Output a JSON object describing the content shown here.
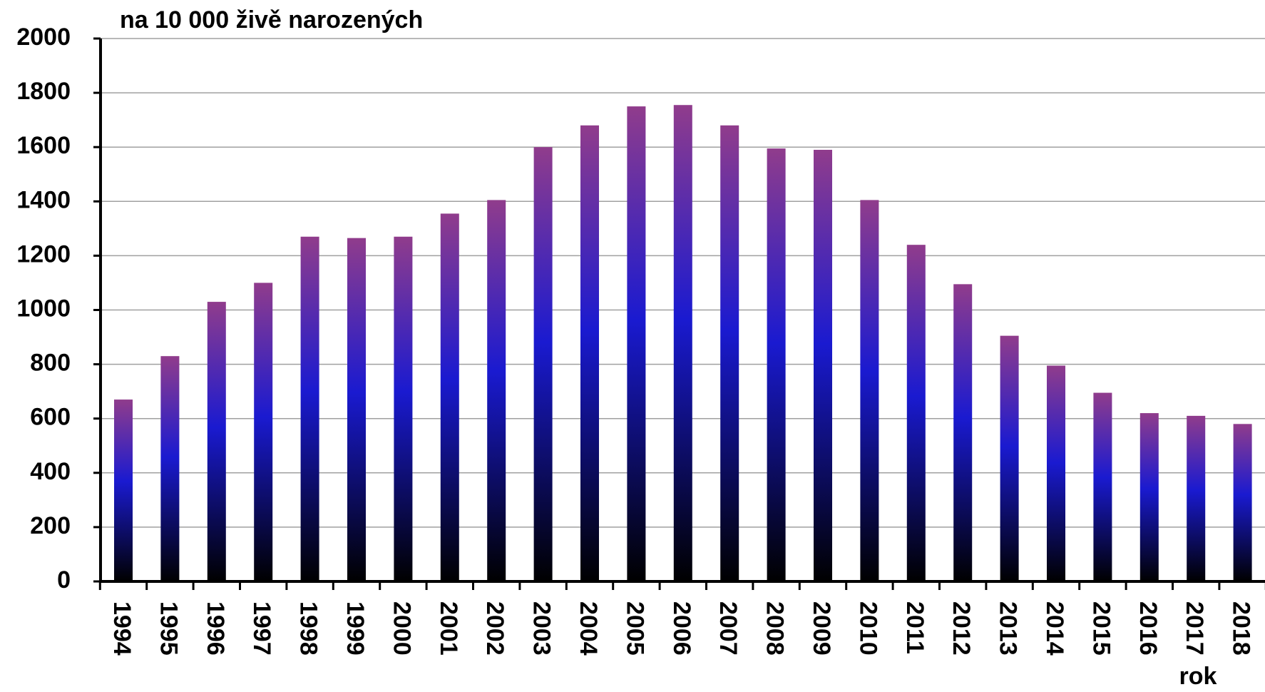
{
  "chart_data": {
    "type": "bar",
    "title": "na 10 000 živě narozených",
    "x_label": "rok",
    "categories": [
      "1994",
      "1995",
      "1996",
      "1997",
      "1998",
      "1999",
      "2000",
      "2001",
      "2002",
      "2003",
      "2004",
      "2005",
      "2006",
      "2007",
      "2008",
      "2009",
      "2010",
      "2011",
      "2012",
      "2013",
      "2014",
      "2015",
      "2016",
      "2017",
      "2018"
    ],
    "values": [
      670,
      830,
      1030,
      1100,
      1270,
      1265,
      1270,
      1355,
      1405,
      1600,
      1680,
      1750,
      1755,
      1680,
      1595,
      1590,
      1405,
      1240,
      1095,
      905,
      795,
      695,
      620,
      610,
      580
    ],
    "gradient": [
      "#903c8c",
      "#1a1ad0",
      "#000000"
    ],
    "ylim": [
      0,
      2000
    ],
    "yticks": [
      0,
      200,
      400,
      600,
      800,
      1000,
      1200,
      1400,
      1600,
      1800,
      2000
    ],
    "grid": true
  }
}
